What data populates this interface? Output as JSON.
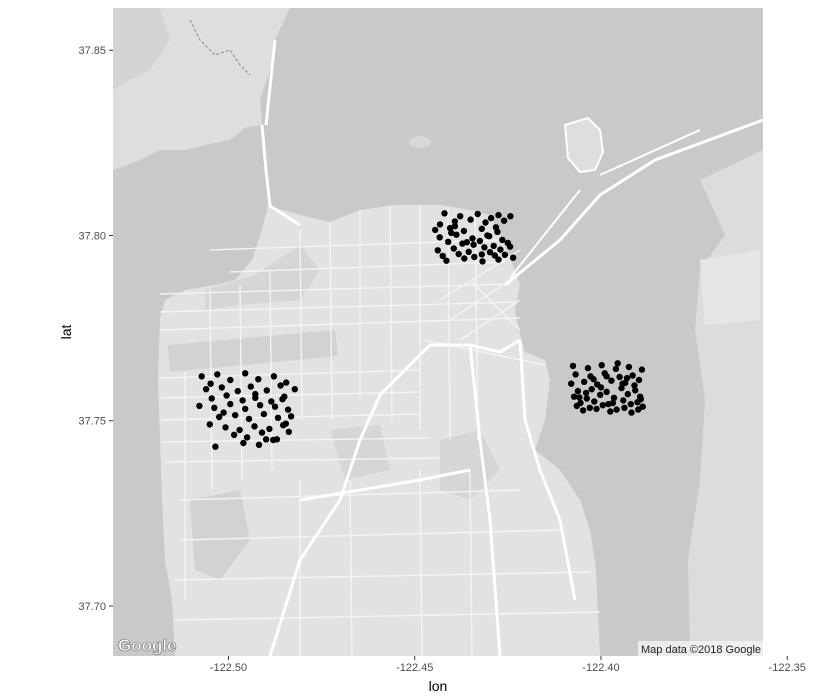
{
  "chart_data": {
    "type": "scatter",
    "title": "",
    "xlabel": "lon",
    "ylabel": "lat",
    "xlim": [
      -122.531,
      -122.3565
    ],
    "ylim": [
      37.6865,
      37.8614
    ],
    "x_ticks": [
      -122.5,
      -122.45,
      -122.4,
      -122.35
    ],
    "x_tick_labels": [
      "-122.50",
      "-122.45",
      "-122.40",
      "-122.35"
    ],
    "y_ticks": [
      37.7,
      37.75,
      37.8,
      37.85
    ],
    "y_tick_labels": [
      "37.70",
      "37.75",
      "37.80",
      "37.85"
    ],
    "marker_color": "#000000",
    "background": "greyscale road map of San Francisco",
    "series": [
      {
        "x": [
          -122.442,
          -122.4378,
          -122.4331,
          -122.4295,
          -122.4275,
          -122.4392,
          -122.435,
          -122.431,
          -122.426,
          -122.4445,
          -122.4405,
          -122.4368,
          -122.432,
          -122.4278,
          -122.4433,
          -122.4388,
          -122.4345,
          -122.43,
          -122.4265,
          -122.441,
          -122.4372,
          -122.4325,
          -122.4288,
          -122.425,
          -122.4438,
          -122.4395,
          -122.4355,
          -122.4313,
          -122.427,
          -122.4425,
          -122.4382,
          -122.434,
          -122.4298,
          -122.4258,
          -122.4432,
          -122.4392,
          -122.4342,
          -122.4305,
          -122.4275,
          -122.4236,
          -122.4415,
          -122.4367,
          -122.4318,
          -122.4285,
          -122.4244,
          -122.4402,
          -122.436,
          -122.432,
          -122.4282,
          -122.4243
        ],
        "y": [
          37.806,
          37.8052,
          37.8058,
          37.8047,
          37.8055,
          37.8038,
          37.8043,
          37.8035,
          37.804,
          37.8015,
          37.802,
          37.8012,
          37.8018,
          37.801,
          37.7995,
          37.8002,
          37.7992,
          37.7998,
          37.7988,
          37.7983,
          37.7978,
          37.7985,
          37.7972,
          37.798,
          37.796,
          37.7965,
          37.7956,
          37.7968,
          37.7962,
          37.7945,
          37.795,
          37.7942,
          37.7955,
          37.7948,
          37.803,
          37.8025,
          37.7975,
          37.8,
          37.7935,
          37.794,
          37.7932,
          37.7938,
          37.793,
          37.7946,
          37.797,
          37.8007,
          37.7982,
          37.7949,
          37.8022,
          37.8052
        ]
      },
      {
        "x": [
          -122.5072,
          -122.503,
          -122.4995,
          -122.4955,
          -122.492,
          -122.4878,
          -122.4845,
          -122.506,
          -122.5018,
          -122.4975,
          -122.494,
          -122.4897,
          -122.486,
          -122.4822,
          -122.5045,
          -122.5005,
          -122.4962,
          -122.4928,
          -122.4885,
          -122.485,
          -122.5078,
          -122.5038,
          -122.4995,
          -122.4955,
          -122.4915,
          -122.4875,
          -122.484,
          -122.5025,
          -122.4982,
          -122.4945,
          -122.4905,
          -122.4867,
          -122.4832,
          -122.505,
          -122.5008,
          -122.497,
          -122.493,
          -122.489,
          -122.4853,
          -122.4985,
          -122.495,
          -122.491,
          -122.487,
          -122.4838,
          -122.5035,
          -122.496,
          -122.4918,
          -122.488,
          -122.4846,
          -122.5013,
          -122.4928,
          -122.4855,
          -122.5048,
          -122.4899
        ],
        "y": [
          37.762,
          37.7625,
          37.761,
          37.7628,
          37.7612,
          37.762,
          37.7603,
          37.7585,
          37.759,
          37.758,
          37.7592,
          37.7582,
          37.7595,
          37.7585,
          37.756,
          37.7568,
          37.7555,
          37.7562,
          37.7552,
          37.7565,
          37.754,
          37.7535,
          37.7545,
          37.7532,
          37.7542,
          37.7538,
          37.753,
          37.751,
          37.7515,
          37.7505,
          37.7518,
          37.7508,
          37.7512,
          37.749,
          37.7482,
          37.7475,
          37.7485,
          37.7478,
          37.7488,
          37.7462,
          37.7455,
          37.7468,
          37.745,
          37.747,
          37.743,
          37.744,
          37.7435,
          37.7448,
          37.7492,
          37.7522,
          37.7572,
          37.7558,
          37.76,
          37.745
        ]
      },
      {
        "x": [
          -122.4075,
          -122.4035,
          -122.3998,
          -122.396,
          -122.3925,
          -122.389,
          -122.4068,
          -122.4028,
          -122.399,
          -122.395,
          -122.3915,
          -122.408,
          -122.4045,
          -122.401,
          -122.3972,
          -122.3935,
          -122.3898,
          -122.4062,
          -122.4025,
          -122.3985,
          -122.3945,
          -122.3908,
          -122.4072,
          -122.4038,
          -122.4002,
          -122.3965,
          -122.3928,
          -122.3893,
          -122.4055,
          -122.4018,
          -122.398,
          -122.394,
          -122.3902,
          -122.4065,
          -122.403,
          -122.3995,
          -122.3958,
          -122.392,
          -122.3888,
          -122.4048,
          -122.4012,
          -122.3975,
          -122.3937,
          -122.39,
          -122.4,
          -122.393,
          -122.404,
          -122.3968,
          -122.391,
          -122.402,
          -122.3955,
          -122.3895,
          -122.3985,
          -122.3918,
          -122.4058,
          -122.3942
        ],
        "y": [
          37.7648,
          37.7642,
          37.765,
          37.764,
          37.7645,
          37.7638,
          37.7625,
          37.762,
          37.7628,
          37.7618,
          37.7622,
          37.76,
          37.7605,
          37.7598,
          37.7608,
          37.7602,
          37.761,
          37.758,
          37.7585,
          37.7578,
          37.7588,
          37.7582,
          37.7565,
          37.756,
          37.757,
          37.7562,
          37.7572,
          37.7558,
          37.7548,
          37.7552,
          37.7545,
          37.7555,
          37.755,
          37.754,
          37.7535,
          37.7542,
          37.753,
          37.7545,
          37.7538,
          37.7528,
          37.7532,
          37.7525,
          37.7535,
          37.753,
          37.759,
          37.7615,
          37.7575,
          37.7548,
          37.7595,
          37.7612,
          37.7655,
          37.7565,
          37.762,
          37.7522,
          37.7563,
          37.76
        ]
      }
    ]
  },
  "attribution": {
    "logo_text": "Google",
    "map_data": "Map data ©2018 Google"
  }
}
